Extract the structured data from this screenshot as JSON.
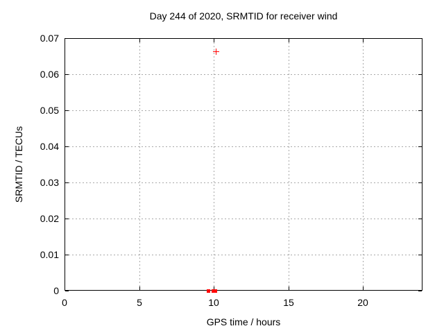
{
  "colors": {
    "background": "#ffffff",
    "axis": "#000000",
    "text": "#000000",
    "grid": "#a8a8a8",
    "marker": "#ff0000"
  },
  "chart_data": {
    "type": "scatter",
    "title": "Day 244 of 2020, SRMTID for receiver wind",
    "xlabel": "GPS time / hours",
    "ylabel": "SRMTID / TECUs",
    "xlim": [
      0,
      24
    ],
    "ylim": [
      0,
      0.07
    ],
    "grid": true,
    "legend": false,
    "xticks": [
      {
        "v": 0,
        "label": "0"
      },
      {
        "v": 5,
        "label": "5"
      },
      {
        "v": 10,
        "label": "10"
      },
      {
        "v": 15,
        "label": "15"
      },
      {
        "v": 20,
        "label": "20"
      }
    ],
    "yticks": [
      {
        "v": 0,
        "label": "0"
      },
      {
        "v": 0.01,
        "label": "0.01"
      },
      {
        "v": 0.02,
        "label": "0.02"
      },
      {
        "v": 0.03,
        "label": "0.03"
      },
      {
        "v": 0.04,
        "label": "0.04"
      },
      {
        "v": 0.05,
        "label": "0.05"
      },
      {
        "v": 0.06,
        "label": "0.06"
      },
      {
        "v": 0.07,
        "label": "0.07"
      }
    ],
    "series": [
      {
        "name": "plus-markers",
        "marker": "plus",
        "color": "#ff0000",
        "points": [
          [
            10.15,
            0.0663
          ]
        ]
      },
      {
        "name": "square-markers",
        "marker": "filled-square",
        "color": "#ff0000",
        "points": [
          [
            9.65,
            0.0
          ],
          [
            9.95,
            0.0
          ],
          [
            10.1,
            0.0
          ]
        ]
      }
    ]
  }
}
